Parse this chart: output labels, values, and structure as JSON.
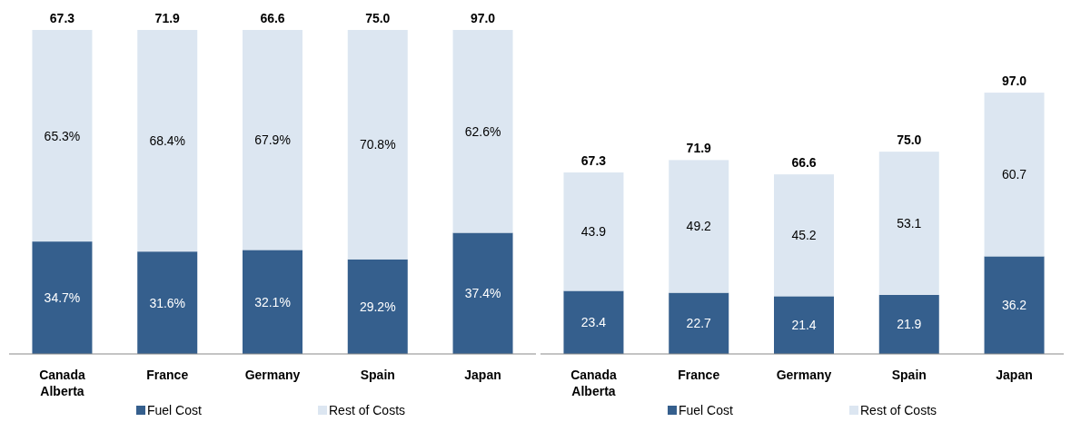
{
  "chart_data": [
    {
      "type": "bar",
      "stacked": true,
      "categories": [
        "Canada Alberta",
        "France",
        "Germany",
        "Spain",
        "Japan"
      ],
      "ylim": [
        0,
        100
      ],
      "tick_labels": "x",
      "legend": "bottom",
      "annotations": [
        {
          "text": "67.3",
          "x": "Canada Alberta",
          "y": 100
        },
        {
          "text": "71.9",
          "x": "France",
          "y": 100
        },
        {
          "text": "66.6",
          "x": "Germany",
          "y": 100
        },
        {
          "text": "75.0",
          "x": "Spain",
          "y": 100
        },
        {
          "text": "97.0",
          "x": "Japan",
          "y": 100
        }
      ],
      "series": [
        {
          "name": "Fuel Cost",
          "color": "#355f8d",
          "values": [
            34.7,
            31.6,
            32.1,
            29.2,
            37.4
          ],
          "value_labels": [
            "34.7%",
            "31.6%",
            "32.1%",
            "29.2%",
            "37.4%"
          ]
        },
        {
          "name": "Rest of Costs",
          "color": "#dce6f1",
          "values": [
            65.3,
            68.4,
            67.9,
            70.8,
            62.6
          ],
          "value_labels": [
            "65.3%",
            "68.4%",
            "67.9%",
            "70.8%",
            "62.6%"
          ]
        }
      ]
    },
    {
      "type": "bar",
      "stacked": true,
      "categories": [
        "Canada Alberta",
        "France",
        "Germany",
        "Spain",
        "Japan"
      ],
      "tick_labels": "x",
      "legend": "bottom",
      "data_labels": true,
      "totals": [
        "67.3",
        "71.9",
        "66.6",
        "75.0",
        "97.0"
      ],
      "series": [
        {
          "name": "Fuel Cost",
          "color": "#355f8d",
          "values": [
            23.4,
            22.7,
            21.4,
            21.9,
            36.2
          ]
        },
        {
          "name": "Rest of Costs",
          "color": "#dce6f1",
          "values": [
            43.9,
            49.2,
            45.2,
            53.1,
            60.7
          ]
        }
      ]
    }
  ]
}
